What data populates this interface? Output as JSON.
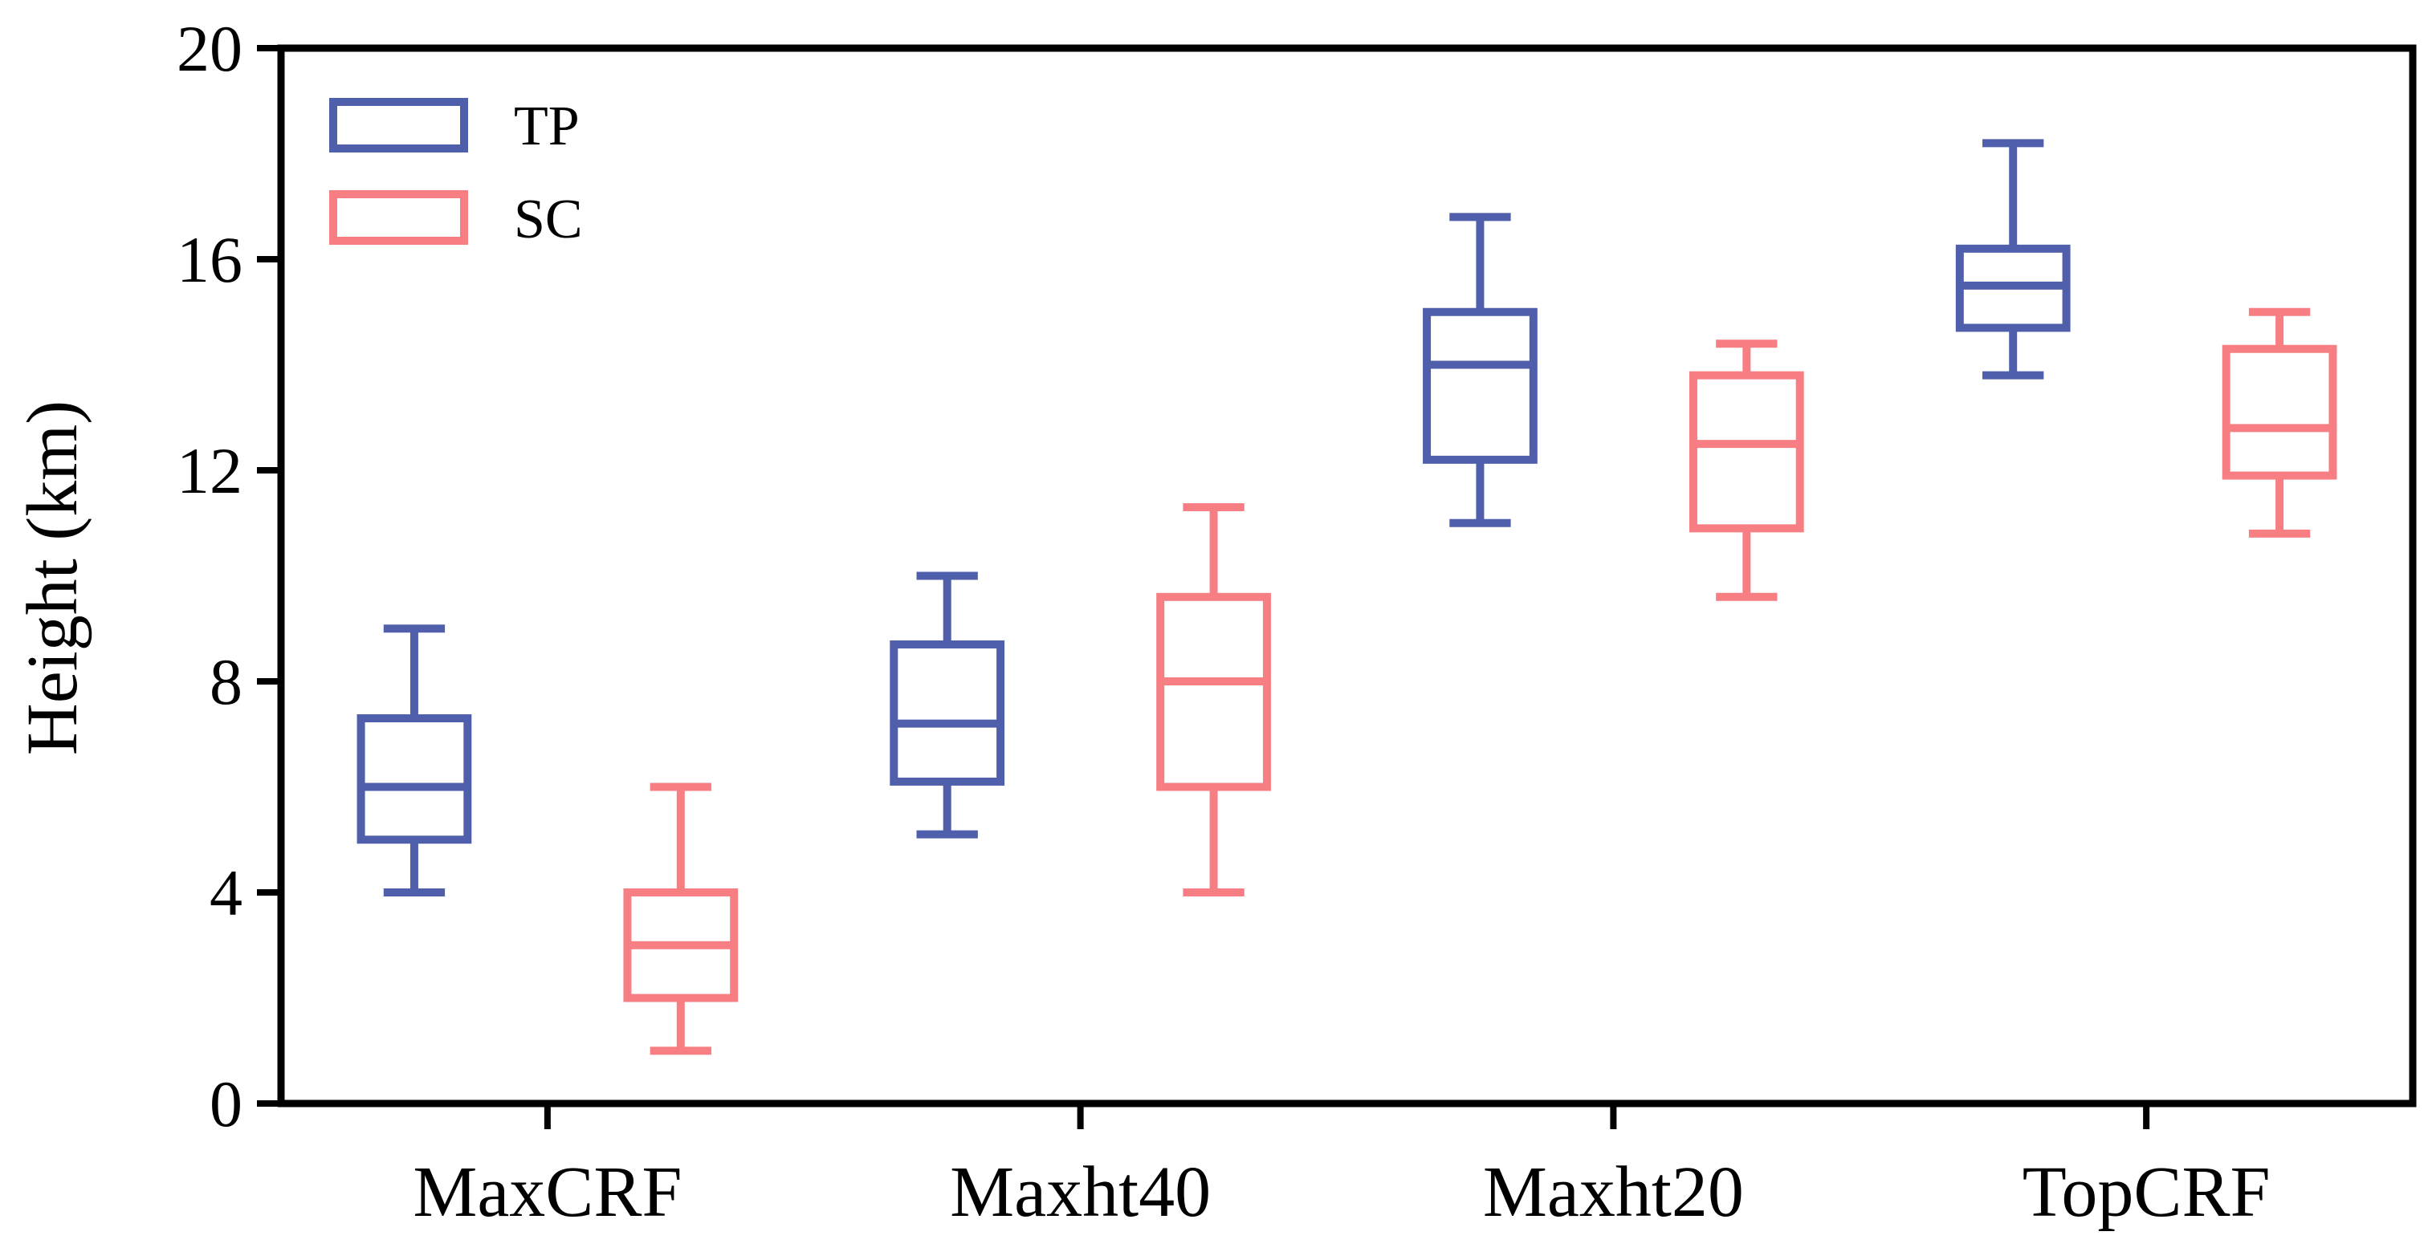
{
  "chart_data": {
    "type": "boxplot",
    "ylabel": "Height (km)",
    "xlabel": "",
    "ylim": [
      0,
      20
    ],
    "yticks": [
      0,
      4,
      8,
      12,
      16,
      20
    ],
    "categories": [
      "MaxCRF",
      "Maxht40",
      "Maxht20",
      "TopCRF"
    ],
    "legend_position": "top-left",
    "series": [
      {
        "name": "TP",
        "color": "#4f5fac",
        "boxes": [
          {
            "whisker_low": 4.0,
            "q1": 5.0,
            "median": 6.0,
            "q3": 7.3,
            "whisker_high": 9.0
          },
          {
            "whisker_low": 5.1,
            "q1": 6.1,
            "median": 7.2,
            "q3": 8.7,
            "whisker_high": 10.0
          },
          {
            "whisker_low": 11.0,
            "q1": 12.2,
            "median": 14.0,
            "q3": 15.0,
            "whisker_high": 16.8
          },
          {
            "whisker_low": 13.8,
            "q1": 14.7,
            "median": 15.5,
            "q3": 16.2,
            "whisker_high": 18.2
          }
        ]
      },
      {
        "name": "SC",
        "color": "#f77f83",
        "boxes": [
          {
            "whisker_low": 1.0,
            "q1": 2.0,
            "median": 3.0,
            "q3": 4.0,
            "whisker_high": 6.0
          },
          {
            "whisker_low": 4.0,
            "q1": 6.0,
            "median": 8.0,
            "q3": 9.6,
            "whisker_high": 11.3
          },
          {
            "whisker_low": 9.6,
            "q1": 10.9,
            "median": 12.5,
            "q3": 13.8,
            "whisker_high": 14.4
          },
          {
            "whisker_low": 10.8,
            "q1": 11.9,
            "median": 12.8,
            "q3": 14.3,
            "whisker_high": 15.0
          }
        ]
      }
    ]
  }
}
